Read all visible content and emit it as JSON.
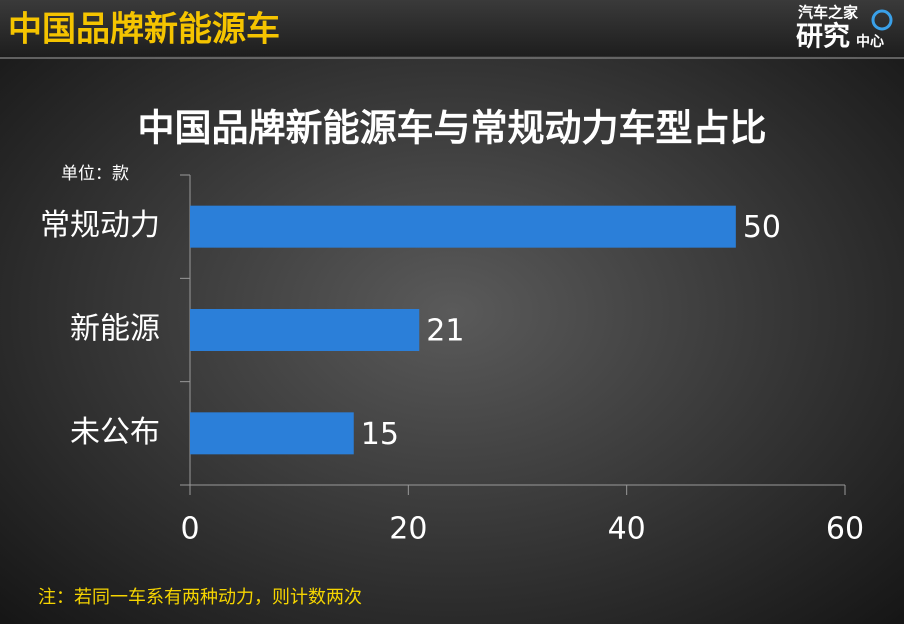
{
  "header": {
    "title": "中国品牌新能源车",
    "logo_top": "汽车之家",
    "logo_main": "研究",
    "logo_side": "中心"
  },
  "chart_data": {
    "type": "bar",
    "orientation": "horizontal",
    "title": "中国品牌新能源车与常规动力车型占比",
    "unit_label": "单位：款",
    "categories": [
      "常规动力",
      "新能源",
      "未公布"
    ],
    "values": [
      50,
      21,
      15
    ],
    "color": "#2b7fd9",
    "xlim": [
      0,
      60
    ],
    "xticks": [
      0,
      20,
      40,
      60
    ],
    "grid": false
  },
  "footnote": "注：若同一车系有两种动力，则计数两次"
}
